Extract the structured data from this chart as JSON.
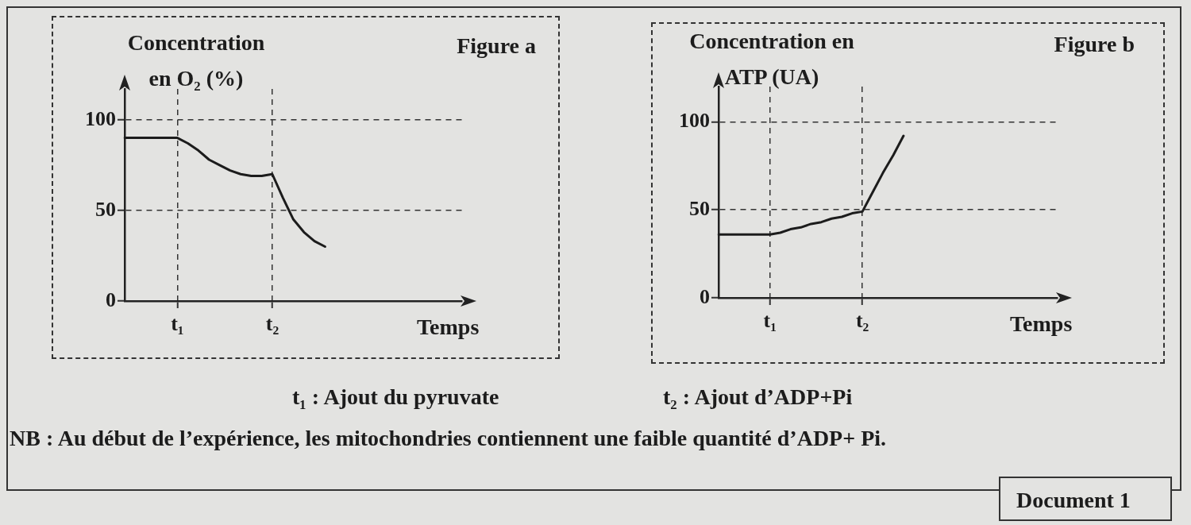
{
  "chart_data": [
    {
      "type": "line",
      "title": "Figure a",
      "ylabel": "Concentration\nen O₂ (%)",
      "xlabel": "Temps",
      "categories": [
        null,
        null,
        null,
        null,
        null,
        "t₁",
        null,
        null,
        null,
        null,
        null,
        null,
        null,
        null,
        "t₂",
        null,
        null,
        null,
        null,
        null,
        null,
        null,
        null,
        null,
        null,
        null,
        null,
        null,
        null,
        null,
        null,
        null,
        null
      ],
      "series": [
        {
          "color": "#1c1c1c",
          "values": [
            90,
            90,
            90,
            90,
            90,
            90,
            87,
            83,
            78,
            75,
            72,
            70,
            69,
            69,
            70,
            57,
            45,
            38,
            33,
            30,
            null,
            null,
            null,
            null,
            null,
            null,
            null,
            null,
            null,
            null,
            null,
            null,
            null
          ]
        }
      ],
      "ylim": [
        0,
        117
      ],
      "yticks": [
        0,
        50,
        100
      ],
      "grid": true,
      "legend": false,
      "marker": "none",
      "line_style": "solid",
      "annotations": [
        "t₁ : Ajout du pyruvate"
      ]
    },
    {
      "type": "line",
      "title": "Figure b",
      "ylabel": "Concentration en\nATP (UA)",
      "xlabel": "Temps",
      "categories": [
        null,
        null,
        null,
        null,
        null,
        "t₁",
        null,
        null,
        null,
        null,
        null,
        null,
        null,
        null,
        "t₂",
        null,
        null,
        null,
        null,
        null,
        null,
        null,
        null,
        null,
        null,
        null,
        null,
        null,
        null,
        null,
        null,
        null,
        null,
        null
      ],
      "series": [
        {
          "color": "#1c1c1c",
          "values": [
            36,
            36,
            36,
            36,
            36,
            36,
            37,
            39,
            40,
            42,
            43,
            45,
            46,
            48,
            49,
            60,
            71,
            81,
            92,
            null,
            null,
            null,
            null,
            null,
            null,
            null,
            null,
            null,
            null,
            null,
            null,
            null,
            null,
            null
          ]
        }
      ],
      "ylim": [
        0,
        120
      ],
      "yticks": [
        0,
        50,
        100
      ],
      "grid": true,
      "legend": false,
      "marker": "none",
      "line_style": "solid",
      "annotations": [
        "t₂ : Ajout d’ADP+Pi",
        "NB : Au début de l’expérience, les mitochondries contiennent une faible quantité d’ADP+ Pi.",
        "Document 1"
      ]
    }
  ]
}
